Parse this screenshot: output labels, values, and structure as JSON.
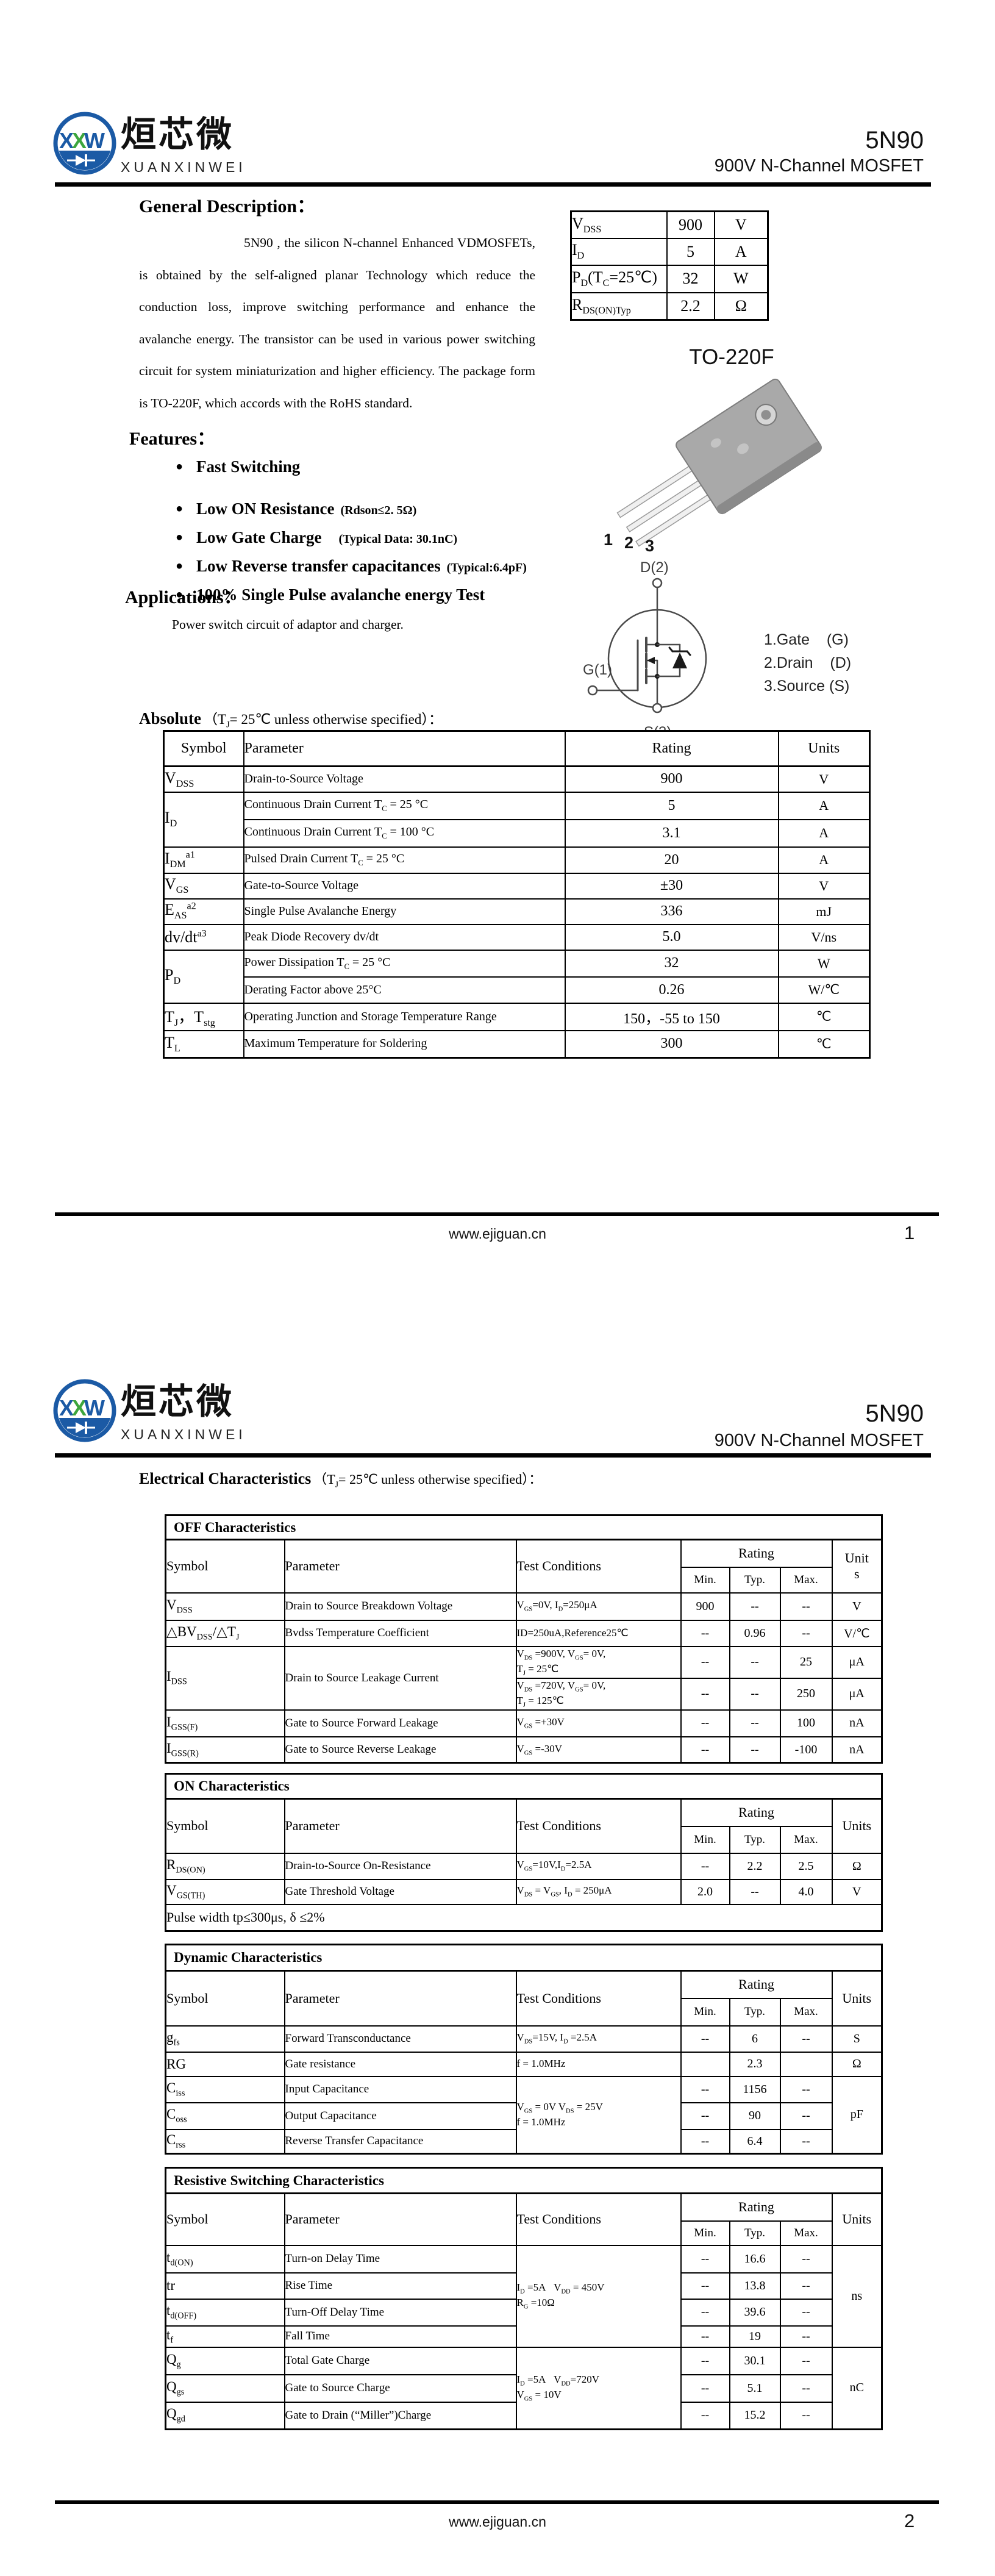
{
  "brand": {
    "chinese": "烜芯微",
    "latin": "XUANXINWEI",
    "mark_letters": [
      "X",
      "X",
      "W"
    ]
  },
  "header": {
    "part": "5N90",
    "subtitle": "900V N-Channel MOSFET"
  },
  "footer": {
    "url": "www.ejiguan.cn",
    "page1": "1",
    "page2": "2"
  },
  "colors": {
    "brand_blue": "#1b5aa5",
    "brand_green": "#3da63d",
    "text": "#000000",
    "package_gray": "#a9a9a9"
  },
  "page1": {
    "general_heading": "General Description：",
    "general_text": "5N90 , the silicon N-channel Enhanced VDMOSFETs, is obtained by the self-aligned planar Technology which reduce the conduction loss, improve switching performance and enhance the avalanche energy. The transistor can be used in various power switching circuit for system miniaturization and higher efficiency. The package form is TO-220F, which accords with the RoHS standard.",
    "features_heading": "Features：",
    "features": [
      {
        "main": "Fast Switching",
        "note": ""
      },
      {
        "main": "Low ON Resistance",
        "note": "(Rdson≤2. 5Ω)"
      },
      {
        "main": "Low Gate Charge",
        "note": "(Typical Data: 30.1nC)"
      },
      {
        "main": "Low Reverse transfer capacitances",
        "note": "(Typical:6.4pF)"
      },
      {
        "main": "100% Single Pulse avalanche energy Test",
        "note": ""
      }
    ],
    "applications_heading": "Applications：",
    "applications_text": "Power switch circuit of adaptor and charger.",
    "package_label": "TO-220F",
    "pin_numbers": [
      "1",
      "2",
      "3"
    ],
    "pin_legend": [
      "1.Gate    (G)",
      "2.Drain    (D)",
      "3.Source (S)"
    ],
    "symbol_labels": {
      "d": "D(2)",
      "g": "G(1)",
      "s": "S(3)"
    },
    "quick_specs": {
      "rows": [
        [
          "V~DSS~",
          "900",
          "V"
        ],
        [
          "I~D~",
          "5",
          "A"
        ],
        [
          "P~D~(T~C~=25℃)",
          "32",
          "W"
        ],
        [
          "R~DS(ON)Typ~",
          "2.2",
          "Ω"
        ]
      ]
    },
    "absolute_heading_bold": "Absolute",
    "absolute_heading_rest": "（T~J~= 25℃  unless otherwise specified）：",
    "absolute": {
      "headers": [
        "Symbol",
        "Parameter",
        "Rating",
        "Units"
      ],
      "rows": [
        [
          {
            "t": "V~DSS~"
          },
          {
            "t": "Drain-to-Source Voltage"
          },
          {
            "t": "900"
          },
          {
            "t": "V"
          }
        ],
        [
          {
            "t": "I~D~",
            "rs": 2
          },
          {
            "t": "Continuous Drain Current T~C~ = 25 °C"
          },
          {
            "t": "5"
          },
          {
            "t": "A"
          }
        ],
        [
          {
            "t": "Continuous Drain Current T~C~ = 100 °C"
          },
          {
            "t": "3.1"
          },
          {
            "t": "A"
          }
        ],
        [
          {
            "t": "I~DM~^a1^"
          },
          {
            "t": "Pulsed Drain Current T~C~ = 25 °C"
          },
          {
            "t": "20"
          },
          {
            "t": "A"
          }
        ],
        [
          {
            "t": "V~GS~"
          },
          {
            "t": "Gate-to-Source Voltage"
          },
          {
            "t": "±30"
          },
          {
            "t": "V"
          }
        ],
        [
          {
            "t": "E~AS~^a2^"
          },
          {
            "t": "Single Pulse Avalanche Energy"
          },
          {
            "t": "336"
          },
          {
            "t": "mJ"
          }
        ],
        [
          {
            "t": "dv/dt^a3^"
          },
          {
            "t": "Peak Diode Recovery dv/dt"
          },
          {
            "t": "5.0"
          },
          {
            "t": "V/ns"
          }
        ],
        [
          {
            "t": "P~D~",
            "rs": 2
          },
          {
            "t": "Power Dissipation T~C~ = 25 °C"
          },
          {
            "t": "32"
          },
          {
            "t": "W"
          }
        ],
        [
          {
            "t": "Derating Factor above 25°C"
          },
          {
            "t": "0.26"
          },
          {
            "t": "W/℃"
          }
        ],
        [
          {
            "t": "T~J~，T~stg~"
          },
          {
            "t": "Operating Junction and Storage Temperature Range"
          },
          {
            "t": "150，-55 to 150"
          },
          {
            "t": "℃"
          }
        ],
        [
          {
            "t": "T~L~"
          },
          {
            "t": "Maximum Temperature for Soldering"
          },
          {
            "t": "300"
          },
          {
            "t": "℃"
          }
        ]
      ]
    }
  },
  "page2": {
    "elec_heading_bold": "Electrical Characteristics",
    "elec_heading_rest": "（T~J~= 25℃  unless otherwise specified）：",
    "col_headers": {
      "symbol": "Symbol",
      "parameter": "Parameter",
      "test": "Test Conditions",
      "rating": "Rating",
      "min": "Min.",
      "typ": "Typ.",
      "max": "Max."
    },
    "tables": [
      {
        "section": "OFF Characteristics",
        "units_label": "Unit\ns",
        "rows": [
          [
            {
              "t": "V~DSS~"
            },
            {
              "t": "Drain to Source Breakdown Voltage"
            },
            {
              "t": "V~GS~=0V, I~D~=250μA"
            },
            {
              "t": "900"
            },
            {
              "t": "--"
            },
            {
              "t": "--"
            },
            {
              "t": "V"
            }
          ],
          [
            {
              "t": "△BV~DSS~/△T~J~"
            },
            {
              "t": "Bvdss Temperature Coefficient"
            },
            {
              "t": "ID=250uA,Reference25℃"
            },
            {
              "t": "--"
            },
            {
              "t": "0.96"
            },
            {
              "t": "--"
            },
            {
              "t": "V/℃"
            }
          ],
          [
            {
              "t": "I~DSS~",
              "rs": 2
            },
            {
              "t": "Drain to Source Leakage Current",
              "rs": 2
            },
            {
              "t": "V~DS~ =900V, V~GS~= 0V,\nT~J~ = 25℃"
            },
            {
              "t": "--"
            },
            {
              "t": "--"
            },
            {
              "t": "25"
            },
            {
              "t": "μA"
            }
          ],
          [
            {
              "t": "V~DS~ =720V, V~GS~= 0V,\nT~J~ = 125℃"
            },
            {
              "t": "--"
            },
            {
              "t": "--"
            },
            {
              "t": "250"
            },
            {
              "t": "μA"
            }
          ],
          [
            {
              "t": "I~GSS(F)~"
            },
            {
              "t": "Gate to Source Forward Leakage"
            },
            {
              "t": "V~GS~ =+30V"
            },
            {
              "t": "--"
            },
            {
              "t": "--"
            },
            {
              "t": "100"
            },
            {
              "t": "nA"
            }
          ],
          [
            {
              "t": "I~GSS(R)~"
            },
            {
              "t": "Gate to Source Reverse Leakage"
            },
            {
              "t": "V~GS~ =-30V"
            },
            {
              "t": "--"
            },
            {
              "t": "--"
            },
            {
              "t": "-100"
            },
            {
              "t": "nA"
            }
          ]
        ]
      },
      {
        "section": "ON Characteristics",
        "units_label": "Units",
        "rows": [
          [
            {
              "t": "R~DS(ON)~"
            },
            {
              "t": "Drain-to-Source On-Resistance"
            },
            {
              "t": "V~GS~=10V,I~D~=2.5A"
            },
            {
              "t": "--"
            },
            {
              "t": "2.2"
            },
            {
              "t": "2.5"
            },
            {
              "t": "Ω"
            }
          ],
          [
            {
              "t": "V~GS(TH)~"
            },
            {
              "t": "Gate Threshold Voltage"
            },
            {
              "t": "V~DS~ = V~GS~, I~D~ = 250μA"
            },
            {
              "t": "2.0"
            },
            {
              "t": "--"
            },
            {
              "t": "4.0"
            },
            {
              "t": "V"
            }
          ]
        ],
        "note": "Pulse width tp≤300μs, δ ≤2%"
      },
      {
        "section": "Dynamic Characteristics",
        "units_label": "Units",
        "rows": [
          [
            {
              "t": "g~fs~"
            },
            {
              "t": "Forward Transconductance"
            },
            {
              "t": "V~DS~=15V, I~D~ =2.5A"
            },
            {
              "t": "--"
            },
            {
              "t": "6"
            },
            {
              "t": "--"
            },
            {
              "t": "S"
            }
          ],
          [
            {
              "t": "RG"
            },
            {
              "t": "Gate resistance"
            },
            {
              "t": "f = 1.0MHz"
            },
            {
              "t": ""
            },
            {
              "t": "2.3"
            },
            {
              "t": ""
            },
            {
              "t": "Ω"
            }
          ],
          [
            {
              "t": "C~iss~"
            },
            {
              "t": "Input Capacitance"
            },
            {
              "t": "V~GS~ = 0V V~DS~ = 25V\nf = 1.0MHz",
              "rs": 3
            },
            {
              "t": "--"
            },
            {
              "t": "1156"
            },
            {
              "t": "--"
            },
            {
              "t": "pF",
              "rs": 3
            }
          ],
          [
            {
              "t": "C~oss~"
            },
            {
              "t": "Output Capacitance"
            },
            {
              "t": "--"
            },
            {
              "t": "90"
            },
            {
              "t": "--"
            }
          ],
          [
            {
              "t": "C~rss~"
            },
            {
              "t": "Reverse Transfer Capacitance"
            },
            {
              "t": "--"
            },
            {
              "t": "6.4"
            },
            {
              "t": "--"
            }
          ]
        ]
      },
      {
        "section": "Resistive Switching Characteristics",
        "units_label": "Units",
        "rows": [
          [
            {
              "t": "t~d(ON)~"
            },
            {
              "t": "Turn-on Delay Time"
            },
            {
              "t": "I~D~ =5A   V~DD~ = 450V\nR~G~ =10Ω",
              "rs": 4
            },
            {
              "t": "--"
            },
            {
              "t": "16.6"
            },
            {
              "t": "--"
            },
            {
              "t": "ns",
              "rs": 4
            }
          ],
          [
            {
              "t": "tr"
            },
            {
              "t": "Rise Time"
            },
            {
              "t": "--"
            },
            {
              "t": "13.8"
            },
            {
              "t": "--"
            }
          ],
          [
            {
              "t": "t~d(OFF)~"
            },
            {
              "t": "Turn-Off Delay Time"
            },
            {
              "t": "--"
            },
            {
              "t": "39.6"
            },
            {
              "t": "--"
            }
          ],
          [
            {
              "t": "t~f~"
            },
            {
              "t": "Fall Time"
            },
            {
              "t": "--"
            },
            {
              "t": "19"
            },
            {
              "t": "--"
            }
          ],
          [
            {
              "t": "Q~g~"
            },
            {
              "t": "Total Gate Charge"
            },
            {
              "t": "I~D~ =5A   V~DD~=720V\nV~GS~ = 10V",
              "rs": 3
            },
            {
              "t": "--"
            },
            {
              "t": "30.1"
            },
            {
              "t": "--"
            },
            {
              "t": "nC",
              "rs": 3
            }
          ],
          [
            {
              "t": "Q~gs~"
            },
            {
              "t": "Gate to Source Charge"
            },
            {
              "t": "--"
            },
            {
              "t": "5.1"
            },
            {
              "t": "--"
            }
          ],
          [
            {
              "t": "Q~gd~"
            },
            {
              "t": "Gate to Drain (“Miller”)Charge"
            },
            {
              "t": "--"
            },
            {
              "t": "15.2"
            },
            {
              "t": "--"
            }
          ]
        ]
      }
    ]
  }
}
